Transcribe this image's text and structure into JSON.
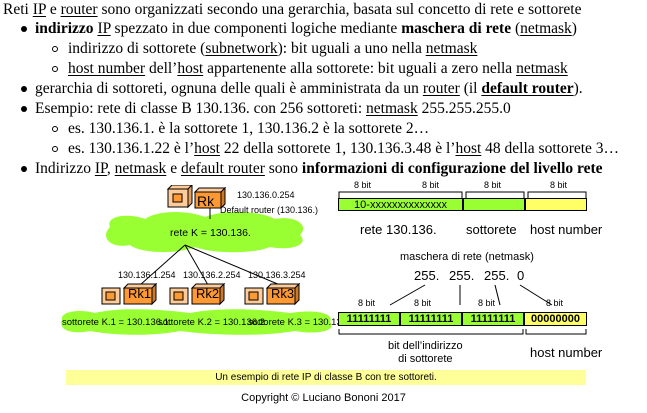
{
  "lines": {
    "l1": {
      "a": "Reti ",
      "b": "IP",
      "c": " e ",
      "d": "router",
      "e": " sono organizzati secondo una gerarchia, basata sul concetto di rete e sottorete"
    },
    "l2": {
      "a": "indirizzo",
      "b": " ",
      "c": "IP",
      "d": " spezzato in due componenti logiche mediante ",
      "e": "maschera di rete",
      "f": " (",
      "g": "netmask",
      "h": ")"
    },
    "l3": {
      "a": "indirizzo di sottorete (",
      "b": "subnetwork",
      "c": "): bit uguali a uno nella ",
      "d": "netmask"
    },
    "l4": {
      "a": "host number",
      "b": " dell’",
      "c": "host",
      "d": " appartenente alla sottorete: bit uguali a zero nella ",
      "e": "netmask"
    },
    "l5": {
      "a": "gerarchia di sottoreti, ognuna delle quali è amministrata da un ",
      "b": "router",
      "c": " (il ",
      "d": "default router",
      "e": ")."
    },
    "l6": {
      "a": "Esempio: rete di classe B 130.136. con 256 sottoreti: ",
      "b": "netmask",
      "c": " 255.255.255.0"
    },
    "l7": {
      "a": "es. 130.136.1. è la sottorete 1, 130.136.2 è la sottorete 2…"
    },
    "l8": {
      "a": "es. 130.136.1.22 è l’",
      "b": "host",
      "c": " 22 della sottorete 1, 130.136.3.48 è l’",
      "d": "host",
      "e": " 48 della sottorete 3…"
    },
    "l9": {
      "a": "Indirizzo ",
      "b": "IP",
      "c": ", ",
      "d": "netmask",
      "e": " e ",
      "f": "default router",
      "g": " sono ",
      "h": "informazioni di configurazione del livello rete"
    }
  },
  "figure": {
    "top_router_ip": "130.136.0.254",
    "top_router_name": "Rk",
    "default_router_label": "Default router (130.136.)",
    "rete_k_label": "rete K = 130.136.",
    "sub_router_ips": [
      "130.136.1.254",
      "130.136.2.254",
      "130.136.3.254"
    ],
    "sub_router_names": [
      "Rk1",
      "Rk2",
      "Rk3"
    ],
    "subnet_labels": [
      "sottorete K.1 = 130.136.1.",
      "sottorete K.2 = 130.136.2.",
      "sottorete K.3 = 130.136.3."
    ],
    "bits_label": "8 bit",
    "address_field1": "10-xxxxxxxxxxxxxx",
    "rete_caption": "rete 130.136.",
    "sottorete_caption": "sottorete",
    "host_number_caption": "host number",
    "mask_title": "maschera di rete (netmask)",
    "mask_values": [
      "255.",
      "255.",
      "255.",
      "0"
    ],
    "mask_fields": [
      "11111111",
      "11111111",
      "11111111",
      "00000000"
    ],
    "bit_indirizzo_caption": "bit dell’indirizzo\ndi sottorete",
    "host_number_caption2": "host number",
    "caption": "Un esempio di rete IP di classe B con tre sottoreti.",
    "colors": {
      "green": "#99ff33",
      "yellow": "#ffff66",
      "peach": "#ffcc99",
      "router": "#ff9933",
      "caption_bg": "#ffff99"
    }
  },
  "footer": {
    "copyright": "Copyright © Luciano Bononi 2017"
  }
}
